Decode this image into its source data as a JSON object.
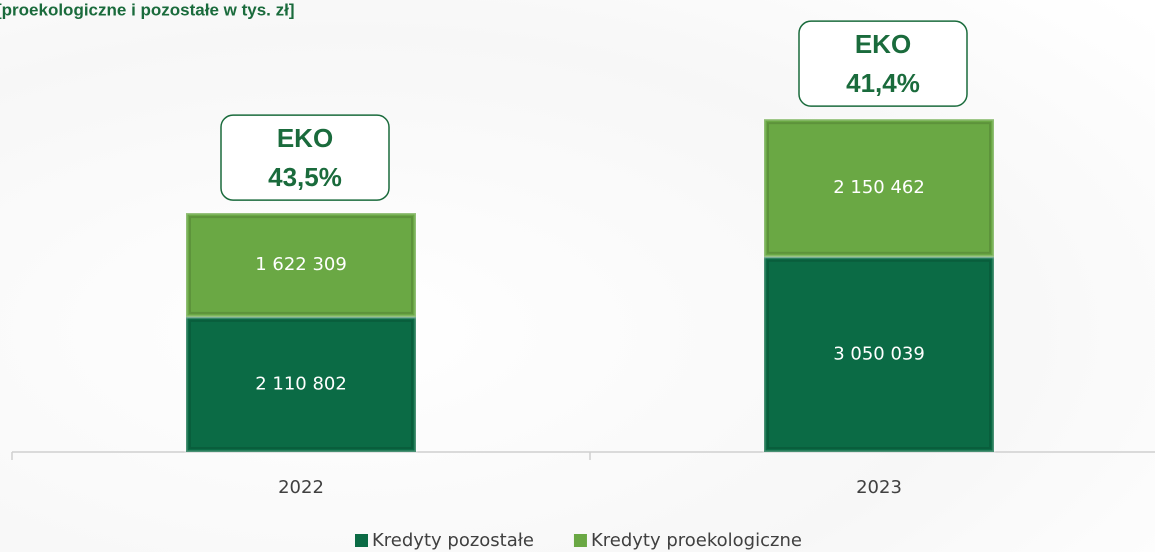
{
  "chart_data": {
    "type": "stacked_bar",
    "title": "[proekologiczne i pozostałe w tys. zł]",
    "categories": [
      "2022",
      "2023"
    ],
    "series": [
      {
        "name": "Kredyty pozostałe",
        "color": "#0b6b45",
        "values": [
          2110802,
          3050039
        ],
        "value_labels": [
          "2 110 802",
          "3 050 039"
        ]
      },
      {
        "name": "Kredyty proekologiczne",
        "color": "#6aa844",
        "values": [
          1622309,
          2150462
        ],
        "value_labels": [
          "1 622 309",
          "2 150 462"
        ]
      }
    ],
    "annotations": [
      [
        "EKO",
        "43,5%"
      ],
      [
        "EKO",
        "41,4%"
      ]
    ],
    "ylim": [
      0,
      7000000
    ],
    "legend": "bottom"
  }
}
